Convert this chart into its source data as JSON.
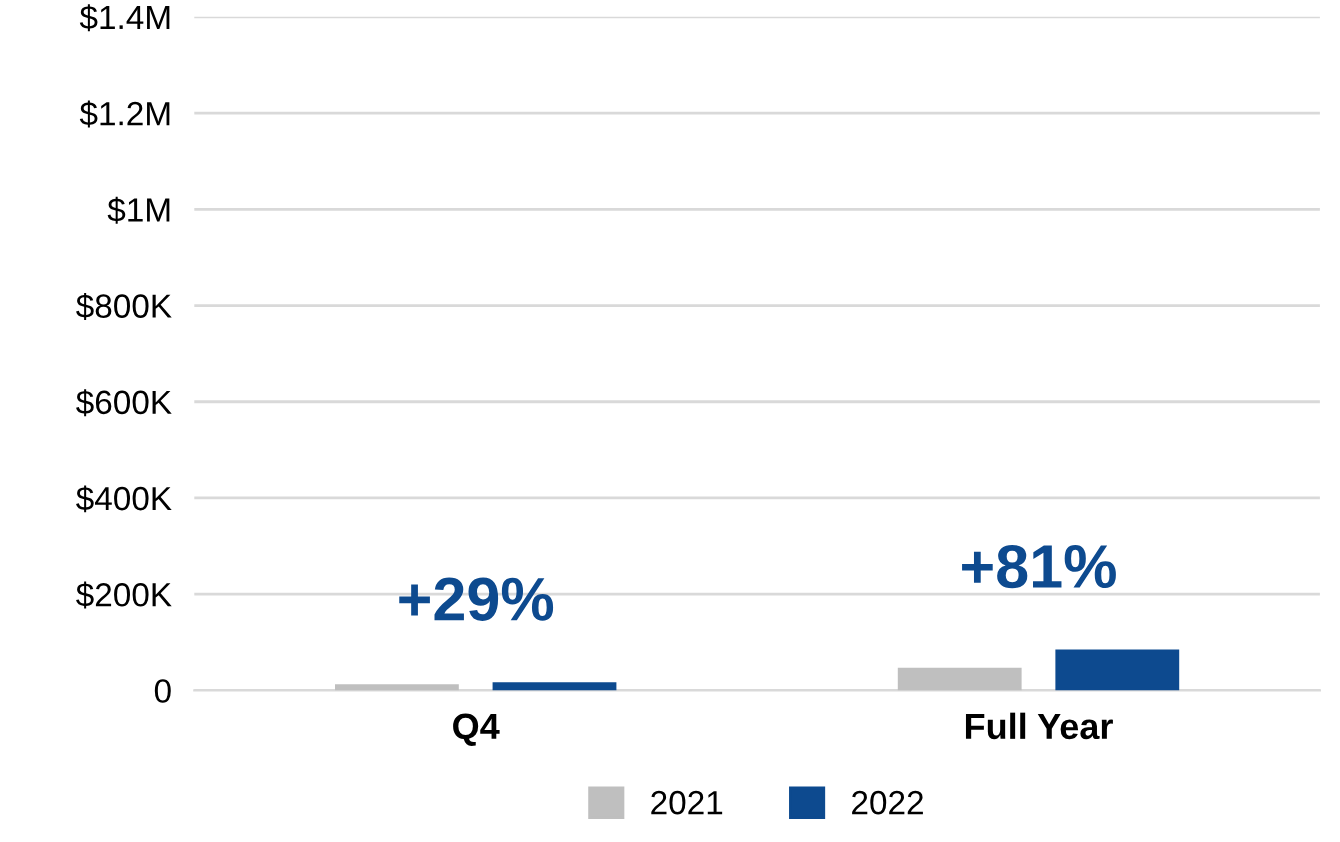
{
  "chart_data": {
    "type": "bar",
    "categories": [
      "Q4",
      "Full Year"
    ],
    "series": [
      {
        "name": "2021",
        "color": "#bfbfbf",
        "values": [
          13000,
          47000
        ]
      },
      {
        "name": "2022",
        "color": "#0d4a8f",
        "values": [
          17000,
          85000
        ]
      }
    ],
    "ylim": [
      0,
      1400000
    ],
    "yticks": [
      {
        "value": 0,
        "label": "0"
      },
      {
        "value": 200000,
        "label": "$200K"
      },
      {
        "value": 400000,
        "label": "$400K"
      },
      {
        "value": 600000,
        "label": "$600K"
      },
      {
        "value": 800000,
        "label": "$800K"
      },
      {
        "value": 1000000,
        "label": "$1M"
      },
      {
        "value": 1200000,
        "label": "$1.2M"
      },
      {
        "value": 1400000,
        "label": "$1.4M"
      }
    ],
    "annotations": [
      "+29%",
      "+81%"
    ],
    "grid": "y",
    "legend": "bottom"
  }
}
